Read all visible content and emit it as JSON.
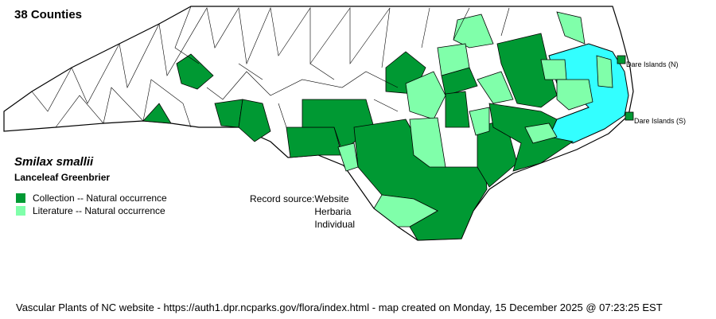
{
  "count_label": "38 Counties",
  "species": {
    "scientific_name": "Smilax smallii",
    "common_name": "Lanceleaf Greenbrier"
  },
  "legend": [
    {
      "label": "Collection -- Natural occurrence",
      "color": "#009933"
    },
    {
      "label": "Literature -- Natural occurrence",
      "color": "#80ffaa"
    }
  ],
  "record_source": {
    "label": "Record source:",
    "values": [
      "Website",
      "Herbaria",
      "Individual"
    ]
  },
  "islands": [
    {
      "label": "Dare Islands (N)",
      "status": "Collection"
    },
    {
      "label": "Dare Islands (S)",
      "status": "Collection"
    }
  ],
  "colors": {
    "water": "#33ffff",
    "collection": "#009933",
    "literature": "#80ffaa",
    "absent": "#ffffff"
  },
  "footer": "Vascular Plants of NC website - https://auth1.dpr.ncparks.gov/flora/index.html - map created on Monday, 15 December 2025 @ 07:23:25 EST"
}
